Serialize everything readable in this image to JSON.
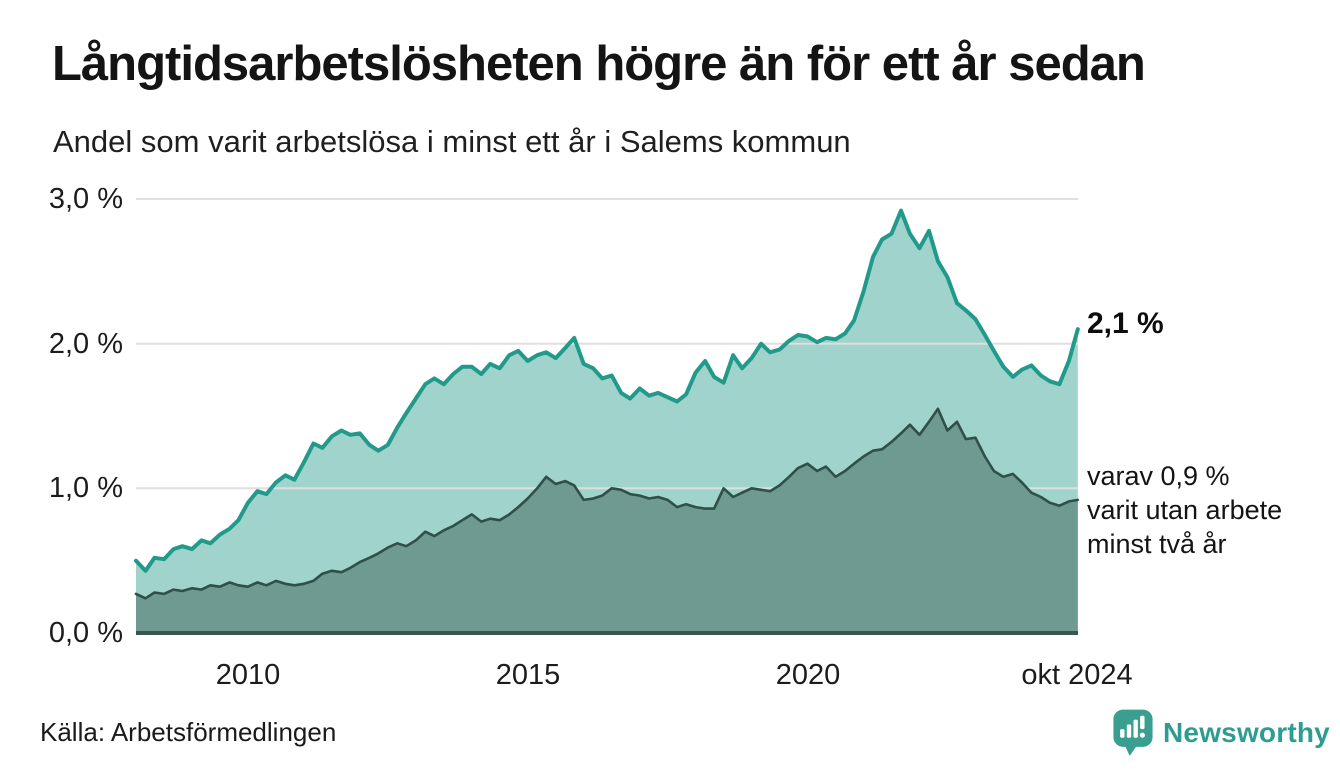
{
  "chart_data": {
    "type": "area",
    "title": "Långtidsarbetslösheten högre än för ett år sedan",
    "subtitle": "Andel som varit arbetslösa i minst ett år i Salems kommun",
    "source": "Källa: Arbetsförmedlingen",
    "xlim": [
      2008,
      2024.833
    ],
    "ylim": [
      0,
      3
    ],
    "grid": "horizontal",
    "grid_values": [
      1.0,
      2.0,
      3.0
    ],
    "y_ticks": [
      {
        "label": "0,0 %",
        "value": 0.0
      },
      {
        "label": "1,0 %",
        "value": 1.0
      },
      {
        "label": "2,0 %",
        "value": 2.0
      },
      {
        "label": "3,0 %",
        "value": 3.0
      }
    ],
    "x_ticks": [
      {
        "label": "2010",
        "year": 2010
      },
      {
        "label": "2015",
        "year": 2015
      },
      {
        "label": "2020",
        "year": 2020
      },
      {
        "label": "okt 2024",
        "year": 2024.833
      }
    ],
    "annotations": {
      "end_value": "2,1 %",
      "detail_lines": [
        "varav 0,9 %",
        "varit utan arbete",
        "minst två år"
      ]
    },
    "series": [
      {
        "name": "Andel som varit arbetslösa i minst ett år",
        "latest_value": 2.1,
        "line_color": "#229a8b",
        "fill_color": "#a0d3cb",
        "points": [
          [
            2008,
            0.5
          ],
          [
            2008.17,
            0.43
          ],
          [
            2008.33,
            0.52
          ],
          [
            2008.5,
            0.51
          ],
          [
            2008.67,
            0.58
          ],
          [
            2008.83,
            0.6
          ],
          [
            2009,
            0.58
          ],
          [
            2009.17,
            0.64
          ],
          [
            2009.33,
            0.62
          ],
          [
            2009.5,
            0.68
          ],
          [
            2009.67,
            0.72
          ],
          [
            2009.83,
            0.78
          ],
          [
            2010,
            0.9
          ],
          [
            2010.17,
            0.98
          ],
          [
            2010.33,
            0.96
          ],
          [
            2010.5,
            1.04
          ],
          [
            2010.67,
            1.09
          ],
          [
            2010.83,
            1.06
          ],
          [
            2011,
            1.18
          ],
          [
            2011.17,
            1.31
          ],
          [
            2011.33,
            1.28
          ],
          [
            2011.5,
            1.36
          ],
          [
            2011.67,
            1.4
          ],
          [
            2011.83,
            1.37
          ],
          [
            2012,
            1.38
          ],
          [
            2012.17,
            1.3
          ],
          [
            2012.33,
            1.26
          ],
          [
            2012.5,
            1.3
          ],
          [
            2012.67,
            1.42
          ],
          [
            2012.83,
            1.52
          ],
          [
            2013,
            1.62
          ],
          [
            2013.17,
            1.72
          ],
          [
            2013.33,
            1.76
          ],
          [
            2013.5,
            1.72
          ],
          [
            2013.67,
            1.79
          ],
          [
            2013.83,
            1.84
          ],
          [
            2014,
            1.84
          ],
          [
            2014.17,
            1.79
          ],
          [
            2014.33,
            1.86
          ],
          [
            2014.5,
            1.83
          ],
          [
            2014.67,
            1.92
          ],
          [
            2014.83,
            1.95
          ],
          [
            2015,
            1.88
          ],
          [
            2015.17,
            1.92
          ],
          [
            2015.33,
            1.94
          ],
          [
            2015.5,
            1.9
          ],
          [
            2015.67,
            1.97
          ],
          [
            2015.83,
            2.04
          ],
          [
            2016,
            1.86
          ],
          [
            2016.17,
            1.83
          ],
          [
            2016.33,
            1.76
          ],
          [
            2016.5,
            1.78
          ],
          [
            2016.67,
            1.66
          ],
          [
            2016.83,
            1.62
          ],
          [
            2017,
            1.69
          ],
          [
            2017.17,
            1.64
          ],
          [
            2017.33,
            1.66
          ],
          [
            2017.5,
            1.63
          ],
          [
            2017.67,
            1.6
          ],
          [
            2017.83,
            1.65
          ],
          [
            2018,
            1.8
          ],
          [
            2018.17,
            1.88
          ],
          [
            2018.33,
            1.77
          ],
          [
            2018.5,
            1.73
          ],
          [
            2018.67,
            1.92
          ],
          [
            2018.83,
            1.83
          ],
          [
            2019,
            1.9
          ],
          [
            2019.17,
            2.0
          ],
          [
            2019.33,
            1.94
          ],
          [
            2019.5,
            1.96
          ],
          [
            2019.67,
            2.02
          ],
          [
            2019.83,
            2.06
          ],
          [
            2020,
            2.05
          ],
          [
            2020.17,
            2.01
          ],
          [
            2020.33,
            2.04
          ],
          [
            2020.5,
            2.03
          ],
          [
            2020.67,
            2.07
          ],
          [
            2020.83,
            2.16
          ],
          [
            2021,
            2.36
          ],
          [
            2021.17,
            2.6
          ],
          [
            2021.33,
            2.72
          ],
          [
            2021.5,
            2.76
          ],
          [
            2021.67,
            2.92
          ],
          [
            2021.83,
            2.76
          ],
          [
            2022,
            2.66
          ],
          [
            2022.17,
            2.78
          ],
          [
            2022.33,
            2.57
          ],
          [
            2022.5,
            2.46
          ],
          [
            2022.67,
            2.28
          ],
          [
            2022.83,
            2.23
          ],
          [
            2023,
            2.17
          ],
          [
            2023.17,
            2.06
          ],
          [
            2023.33,
            1.95
          ],
          [
            2023.5,
            1.84
          ],
          [
            2023.67,
            1.77
          ],
          [
            2023.83,
            1.82
          ],
          [
            2024,
            1.85
          ],
          [
            2024.17,
            1.78
          ],
          [
            2024.33,
            1.74
          ],
          [
            2024.5,
            1.72
          ],
          [
            2024.67,
            1.88
          ],
          [
            2024.83,
            2.1
          ]
        ]
      },
      {
        "name": "varav varit utan arbete minst två år",
        "latest_value": 0.9,
        "line_color": "#2f5049",
        "fill_color": "#6f9a92",
        "points": [
          [
            2008,
            0.27
          ],
          [
            2008.17,
            0.24
          ],
          [
            2008.33,
            0.28
          ],
          [
            2008.5,
            0.27
          ],
          [
            2008.67,
            0.3
          ],
          [
            2008.83,
            0.29
          ],
          [
            2009,
            0.31
          ],
          [
            2009.17,
            0.3
          ],
          [
            2009.33,
            0.33
          ],
          [
            2009.5,
            0.32
          ],
          [
            2009.67,
            0.35
          ],
          [
            2009.83,
            0.33
          ],
          [
            2010,
            0.32
          ],
          [
            2010.17,
            0.35
          ],
          [
            2010.33,
            0.33
          ],
          [
            2010.5,
            0.36
          ],
          [
            2010.67,
            0.34
          ],
          [
            2010.83,
            0.33
          ],
          [
            2011,
            0.34
          ],
          [
            2011.17,
            0.36
          ],
          [
            2011.33,
            0.41
          ],
          [
            2011.5,
            0.43
          ],
          [
            2011.67,
            0.42
          ],
          [
            2011.83,
            0.45
          ],
          [
            2012,
            0.49
          ],
          [
            2012.17,
            0.52
          ],
          [
            2012.33,
            0.55
          ],
          [
            2012.5,
            0.59
          ],
          [
            2012.67,
            0.62
          ],
          [
            2012.83,
            0.6
          ],
          [
            2013,
            0.64
          ],
          [
            2013.17,
            0.7
          ],
          [
            2013.33,
            0.67
          ],
          [
            2013.5,
            0.71
          ],
          [
            2013.67,
            0.74
          ],
          [
            2013.83,
            0.78
          ],
          [
            2014,
            0.82
          ],
          [
            2014.17,
            0.77
          ],
          [
            2014.33,
            0.79
          ],
          [
            2014.5,
            0.78
          ],
          [
            2014.67,
            0.82
          ],
          [
            2014.83,
            0.87
          ],
          [
            2015,
            0.93
          ],
          [
            2015.17,
            1.0
          ],
          [
            2015.33,
            1.08
          ],
          [
            2015.5,
            1.03
          ],
          [
            2015.67,
            1.05
          ],
          [
            2015.83,
            1.02
          ],
          [
            2016,
            0.92
          ],
          [
            2016.17,
            0.93
          ],
          [
            2016.33,
            0.95
          ],
          [
            2016.5,
            1.0
          ],
          [
            2016.67,
            0.99
          ],
          [
            2016.83,
            0.96
          ],
          [
            2017,
            0.95
          ],
          [
            2017.17,
            0.93
          ],
          [
            2017.33,
            0.94
          ],
          [
            2017.5,
            0.92
          ],
          [
            2017.67,
            0.87
          ],
          [
            2017.83,
            0.89
          ],
          [
            2018,
            0.87
          ],
          [
            2018.17,
            0.86
          ],
          [
            2018.33,
            0.86
          ],
          [
            2018.5,
            1.0
          ],
          [
            2018.67,
            0.94
          ],
          [
            2018.83,
            0.97
          ],
          [
            2019,
            1.0
          ],
          [
            2019.17,
            0.99
          ],
          [
            2019.33,
            0.98
          ],
          [
            2019.5,
            1.02
          ],
          [
            2019.67,
            1.08
          ],
          [
            2019.83,
            1.14
          ],
          [
            2020,
            1.17
          ],
          [
            2020.17,
            1.12
          ],
          [
            2020.33,
            1.15
          ],
          [
            2020.5,
            1.08
          ],
          [
            2020.67,
            1.12
          ],
          [
            2020.83,
            1.17
          ],
          [
            2021,
            1.22
          ],
          [
            2021.17,
            1.26
          ],
          [
            2021.33,
            1.27
          ],
          [
            2021.5,
            1.32
          ],
          [
            2021.67,
            1.38
          ],
          [
            2021.83,
            1.44
          ],
          [
            2022,
            1.37
          ],
          [
            2022.17,
            1.46
          ],
          [
            2022.33,
            1.55
          ],
          [
            2022.5,
            1.4
          ],
          [
            2022.67,
            1.46
          ],
          [
            2022.83,
            1.34
          ],
          [
            2023,
            1.35
          ],
          [
            2023.17,
            1.22
          ],
          [
            2023.33,
            1.12
          ],
          [
            2023.5,
            1.08
          ],
          [
            2023.67,
            1.1
          ],
          [
            2023.83,
            1.04
          ],
          [
            2024,
            0.97
          ],
          [
            2024.17,
            0.94
          ],
          [
            2024.33,
            0.9
          ],
          [
            2024.5,
            0.88
          ],
          [
            2024.67,
            0.91
          ],
          [
            2024.83,
            0.92
          ]
        ]
      }
    ]
  },
  "footer": {
    "brand": "Newsworthy"
  },
  "colors": {
    "grid": "#dfdfdf",
    "baseline": "#3a554f",
    "brand_teal": "#2d9d90",
    "icon_teal": "#3a9e90",
    "text": "#1a1a1a"
  }
}
